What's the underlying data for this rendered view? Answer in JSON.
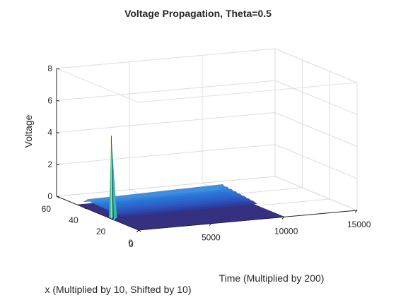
{
  "chart_data": {
    "type": "surface3d",
    "title": "Voltage Propagation, Theta=0.5",
    "xlabel": "Time (Multiplied by 200)",
    "ylabel": "x (Multiplied by 10, Shifted by 10)",
    "zlabel": "Voltage",
    "xlim": [
      0,
      15000
    ],
    "ylim": [
      0,
      60
    ],
    "zlim": [
      0,
      8
    ],
    "x_ticks": [
      "0",
      "5000",
      "10000",
      "15000"
    ],
    "y_ticks": [
      "0",
      "20",
      "40",
      "60"
    ],
    "z_ticks": [
      "0",
      "2",
      "4",
      "6",
      "8"
    ],
    "grid": true,
    "colormap": "parula",
    "surface_extent": {
      "time": [
        0,
        10000
      ],
      "x": [
        0,
        45
      ]
    },
    "features": [
      {
        "name": "initial spike",
        "time": 0,
        "x": 20,
        "voltage": 5.2
      },
      {
        "name": "propagating front",
        "time_end": 10000,
        "x_range": [
          20,
          45
        ],
        "voltage": 0.45
      }
    ]
  }
}
